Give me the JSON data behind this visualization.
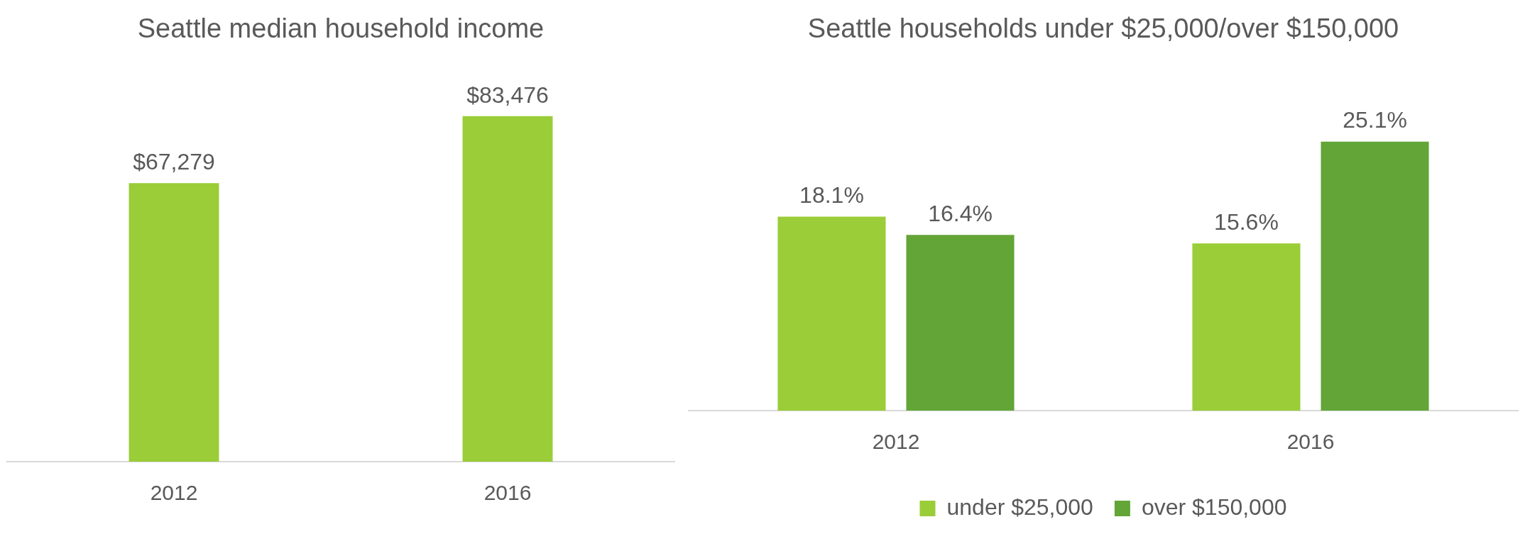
{
  "chart_data": [
    {
      "type": "bar",
      "title": "Seattle median household income",
      "categories": [
        "2012",
        "2016"
      ],
      "values": [
        67279,
        83476
      ],
      "color": "#9acd37",
      "value_labels": [
        "$67,279",
        "$83,476"
      ]
    },
    {
      "type": "bar",
      "title": "Seattle households under $25,000/over $150,000",
      "categories": [
        "2012",
        "2016"
      ],
      "legend": "bottom",
      "series": [
        {
          "name": "under $25,000",
          "color": "#9acd37",
          "values": [
            18.1,
            15.6
          ],
          "value_labels": [
            "18.1%",
            "15.6%"
          ]
        },
        {
          "name": "over $150,000",
          "color": "#63a537",
          "values": [
            16.4,
            25.1
          ],
          "value_labels": [
            "16.4%",
            "25.1%"
          ]
        }
      ]
    }
  ]
}
